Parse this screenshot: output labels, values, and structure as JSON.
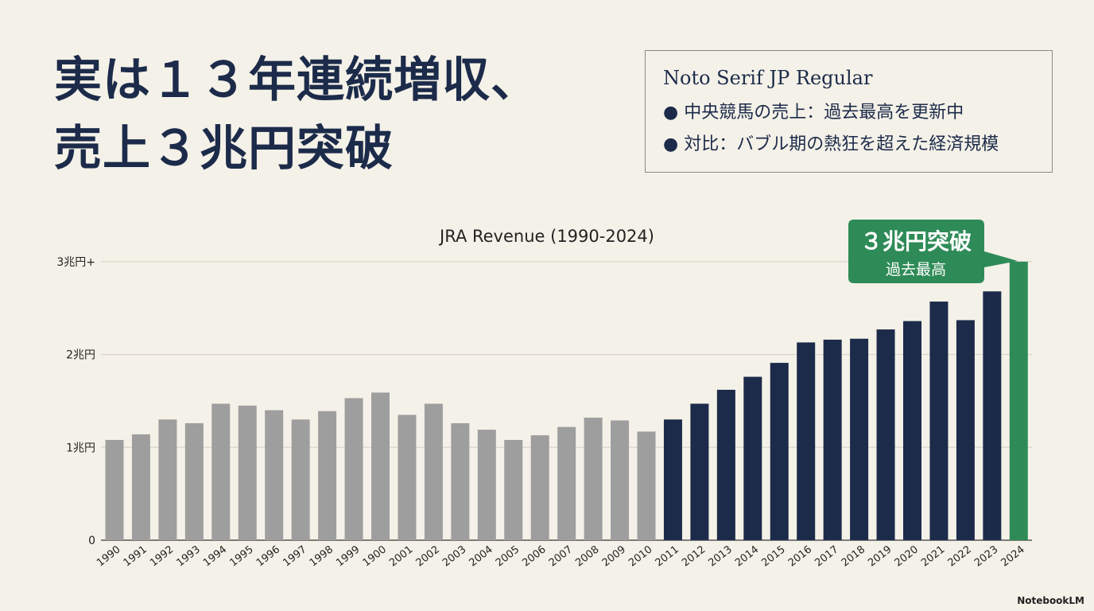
{
  "headline": {
    "line1": "実は１３年連続増収、",
    "line2": "売上３兆円突破"
  },
  "notes": {
    "heading": "Noto Serif JP Regular",
    "bullets": [
      "中央競馬の売上：過去最高を更新中",
      "対比：バブル期の熱狂を超えた経済規模"
    ]
  },
  "callout": {
    "title": "３兆円突破",
    "subtitle": "過去最高"
  },
  "brand": "NotebookLM",
  "colors": {
    "past": "#9e9e9e",
    "growth": "#1c2b4a",
    "record": "#2e8b57"
  },
  "chart_data": {
    "type": "bar",
    "title": "JRA Revenue (1990-2024)",
    "xlabel": "",
    "ylabel": "",
    "ylim": [
      0,
      3
    ],
    "yticks": [
      {
        "v": 0,
        "label": "0"
      },
      {
        "v": 1,
        "label": "1兆円"
      },
      {
        "v": 2,
        "label": "2兆円"
      },
      {
        "v": 3,
        "label": "3兆円+"
      }
    ],
    "grid": true,
    "categories": [
      "1990",
      "1991",
      "1992",
      "1993",
      "1994",
      "1995",
      "1996",
      "1997",
      "1998",
      "1999",
      "1900",
      "2001",
      "2002",
      "2003",
      "2004",
      "2005",
      "2006",
      "2007",
      "2008",
      "2009",
      "2010",
      "2011",
      "2012",
      "2013",
      "2014",
      "2015",
      "2016",
      "2017",
      "2018",
      "2019",
      "2020",
      "2021",
      "2022",
      "2023",
      "2024"
    ],
    "values": [
      1.08,
      1.14,
      1.3,
      1.26,
      1.47,
      1.45,
      1.4,
      1.3,
      1.39,
      1.53,
      1.59,
      1.35,
      1.47,
      1.26,
      1.19,
      1.08,
      1.13,
      1.22,
      1.32,
      1.29,
      1.17,
      1.3,
      1.47,
      1.62,
      1.76,
      1.91,
      2.13,
      2.16,
      2.17,
      2.27,
      2.36,
      2.57,
      2.37,
      2.68,
      3.0
    ],
    "groups": [
      {
        "name": "past",
        "from": 0,
        "to": 20
      },
      {
        "name": "growth",
        "from": 21,
        "to": 33
      },
      {
        "name": "record",
        "from": 34,
        "to": 34
      }
    ]
  }
}
